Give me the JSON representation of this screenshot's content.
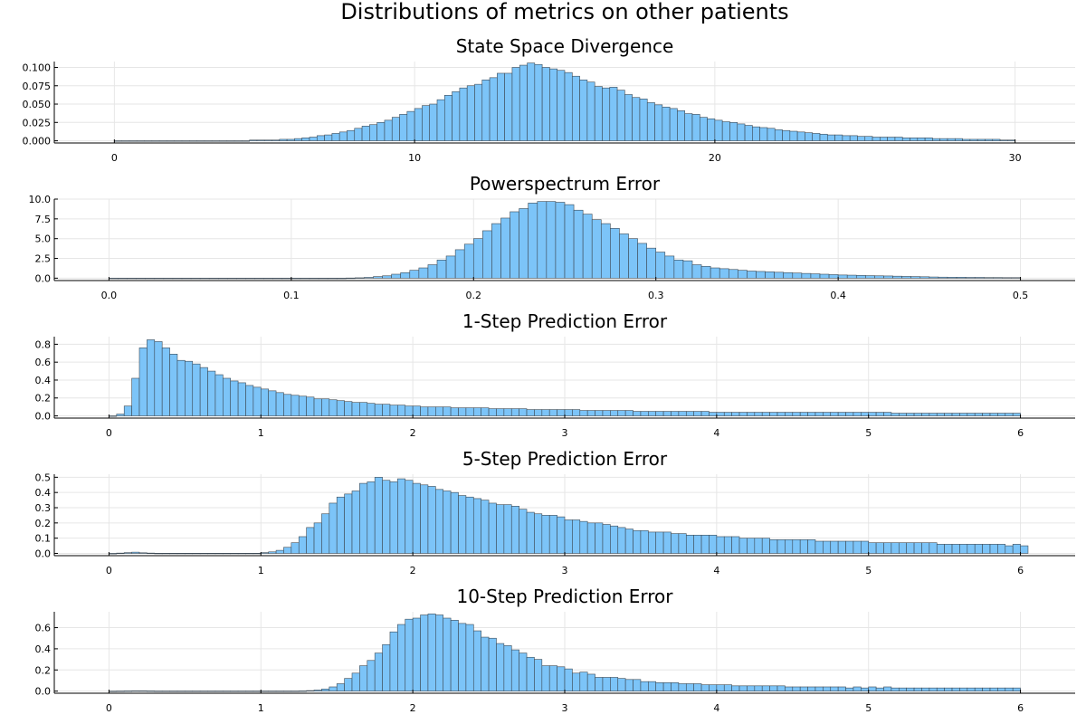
{
  "figure": {
    "title": "Distributions of metrics on other patients",
    "bar_color": "#7cc4f8",
    "edge_color": "#3d4a55"
  },
  "chart_data": [
    {
      "type": "bar",
      "title": "State Space Divergence",
      "xlim": [
        -2,
        32
      ],
      "ylim": [
        -0.003,
        0.108
      ],
      "xticks": [
        0,
        10,
        20,
        30
      ],
      "xtick_labels": [
        "0",
        "10",
        "20",
        "30"
      ],
      "yticks": [
        0,
        0.025,
        0.05,
        0.075,
        0.1
      ],
      "ytick_labels": [
        "0.000",
        "0.025",
        "0.050",
        "0.075",
        "0.100"
      ],
      "x_start": 0,
      "bin_width": 0.25,
      "values": [
        0,
        0,
        0,
        0,
        0,
        0,
        0,
        0,
        0,
        0,
        0,
        0,
        0,
        0,
        0,
        0,
        0,
        0,
        0.001,
        0.001,
        0.001,
        0.001,
        0.002,
        0.002,
        0.003,
        0.004,
        0.005,
        0.007,
        0.008,
        0.01,
        0.012,
        0.014,
        0.017,
        0.02,
        0.022,
        0.025,
        0.028,
        0.032,
        0.036,
        0.04,
        0.044,
        0.048,
        0.05,
        0.056,
        0.062,
        0.067,
        0.072,
        0.075,
        0.077,
        0.083,
        0.086,
        0.092,
        0.092,
        0.1,
        0.103,
        0.106,
        0.104,
        0.1,
        0.098,
        0.096,
        0.093,
        0.088,
        0.083,
        0.08,
        0.074,
        0.072,
        0.073,
        0.069,
        0.063,
        0.059,
        0.057,
        0.052,
        0.049,
        0.046,
        0.044,
        0.041,
        0.037,
        0.036,
        0.032,
        0.03,
        0.028,
        0.026,
        0.025,
        0.023,
        0.021,
        0.019,
        0.018,
        0.017,
        0.015,
        0.014,
        0.013,
        0.012,
        0.011,
        0.01,
        0.009,
        0.008,
        0.008,
        0.007,
        0.007,
        0.006,
        0.006,
        0.005,
        0.005,
        0.005,
        0.005,
        0.004,
        0.004,
        0.004,
        0.004,
        0.003,
        0.003,
        0.003,
        0.003,
        0.002,
        0.002,
        0.002,
        0.002,
        0.002,
        0.001,
        0.001
      ]
    },
    {
      "type": "bar",
      "title": "Powerspectrum Error",
      "xlim": [
        -0.03,
        0.53
      ],
      "ylim": [
        -0.3,
        10.0
      ],
      "xticks": [
        0,
        0.1,
        0.2,
        0.3,
        0.4,
        0.5
      ],
      "xtick_labels": [
        "0.0",
        "0.1",
        "0.2",
        "0.3",
        "0.4",
        "0.5"
      ],
      "yticks": [
        0,
        2.5,
        5,
        7.5,
        10
      ],
      "ytick_labels": [
        "0.0",
        "2.5",
        "5.0",
        "7.5",
        "10.0"
      ],
      "x_start": 0,
      "bin_width": 0.005,
      "values": [
        0,
        0,
        0,
        0,
        0,
        0,
        0,
        0,
        0,
        0,
        0,
        0,
        0,
        0,
        0,
        0,
        0,
        0,
        0,
        0,
        0,
        0,
        0,
        0,
        0,
        0,
        0.02,
        0.05,
        0.1,
        0.2,
        0.3,
        0.5,
        0.7,
        1.0,
        1.3,
        1.7,
        2.3,
        2.8,
        3.6,
        4.3,
        5.0,
        6.0,
        6.9,
        7.6,
        8.4,
        8.8,
        9.5,
        9.7,
        9.7,
        9.6,
        9.3,
        8.6,
        8.1,
        7.4,
        6.9,
        6.3,
        5.6,
        5.0,
        4.4,
        3.8,
        3.3,
        2.8,
        2.3,
        2.2,
        1.7,
        1.5,
        1.3,
        1.2,
        1.1,
        1.0,
        0.9,
        0.85,
        0.8,
        0.75,
        0.7,
        0.65,
        0.6,
        0.55,
        0.5,
        0.45,
        0.4,
        0.38,
        0.35,
        0.32,
        0.3,
        0.28,
        0.25,
        0.22,
        0.2,
        0.18,
        0.15,
        0.13,
        0.12,
        0.12,
        0.1,
        0.1,
        0.08,
        0.08,
        0.07,
        0.07
      ]
    },
    {
      "type": "bar",
      "title": "1-Step Prediction Error",
      "xlim": [
        -0.36,
        6.36
      ],
      "ylim": [
        -0.025,
        0.885
      ],
      "xticks": [
        0,
        1,
        2,
        3,
        4,
        5,
        6
      ],
      "xtick_labels": [
        "0",
        "1",
        "2",
        "3",
        "4",
        "5",
        "6"
      ],
      "yticks": [
        0,
        0.2,
        0.4,
        0.6,
        0.8
      ],
      "ytick_labels": [
        "0.0",
        "0.2",
        "0.4",
        "0.6",
        "0.8"
      ],
      "x_start": 0,
      "bin_width": 0.05,
      "values": [
        0,
        0.02,
        0.11,
        0.42,
        0.76,
        0.85,
        0.83,
        0.76,
        0.69,
        0.62,
        0.61,
        0.58,
        0.54,
        0.5,
        0.46,
        0.42,
        0.39,
        0.37,
        0.34,
        0.32,
        0.3,
        0.28,
        0.26,
        0.24,
        0.23,
        0.22,
        0.21,
        0.19,
        0.19,
        0.18,
        0.17,
        0.16,
        0.15,
        0.15,
        0.14,
        0.13,
        0.13,
        0.12,
        0.12,
        0.11,
        0.11,
        0.1,
        0.1,
        0.1,
        0.1,
        0.09,
        0.09,
        0.09,
        0.09,
        0.09,
        0.08,
        0.08,
        0.08,
        0.08,
        0.08,
        0.07,
        0.07,
        0.07,
        0.07,
        0.07,
        0.07,
        0.07,
        0.06,
        0.06,
        0.06,
        0.06,
        0.06,
        0.06,
        0.06,
        0.05,
        0.05,
        0.05,
        0.05,
        0.05,
        0.05,
        0.05,
        0.05,
        0.05,
        0.05,
        0.04,
        0.04,
        0.04,
        0.04,
        0.04,
        0.04,
        0.04,
        0.04,
        0.04,
        0.04,
        0.04,
        0.04,
        0.04,
        0.04,
        0.04,
        0.04,
        0.04,
        0.04,
        0.04,
        0.04,
        0.04,
        0.04,
        0.04,
        0.04,
        0.03,
        0.03,
        0.03,
        0.03,
        0.03,
        0.03,
        0.03,
        0.03,
        0.03,
        0.03,
        0.03,
        0.03,
        0.03,
        0.03,
        0.03,
        0.03,
        0.03
      ]
    },
    {
      "type": "bar",
      "title": "5-Step Prediction Error",
      "xlim": [
        -0.36,
        6.36
      ],
      "ylim": [
        -0.015,
        0.52
      ],
      "xticks": [
        0,
        1,
        2,
        3,
        4,
        5,
        6
      ],
      "xtick_labels": [
        "0",
        "1",
        "2",
        "3",
        "4",
        "5",
        "6"
      ],
      "yticks": [
        0,
        0.1,
        0.2,
        0.3,
        0.4,
        0.5
      ],
      "ytick_labels": [
        "0.0",
        "0.1",
        "0.2",
        "0.3",
        "0.4",
        "0.5"
      ],
      "x_start": 0,
      "bin_width": 0.05,
      "values": [
        0,
        0.002,
        0.005,
        0.008,
        0.004,
        0.002,
        0.001,
        0.001,
        0.001,
        0.001,
        0.001,
        0.001,
        0.001,
        0.001,
        0.001,
        0.001,
        0.001,
        0.001,
        0.001,
        0.001,
        0.005,
        0.01,
        0.02,
        0.04,
        0.07,
        0.11,
        0.17,
        0.2,
        0.26,
        0.33,
        0.37,
        0.39,
        0.41,
        0.46,
        0.47,
        0.5,
        0.48,
        0.47,
        0.49,
        0.48,
        0.46,
        0.45,
        0.44,
        0.42,
        0.41,
        0.4,
        0.38,
        0.37,
        0.36,
        0.35,
        0.33,
        0.32,
        0.32,
        0.31,
        0.29,
        0.27,
        0.26,
        0.25,
        0.25,
        0.24,
        0.22,
        0.22,
        0.21,
        0.2,
        0.2,
        0.19,
        0.18,
        0.17,
        0.16,
        0.15,
        0.15,
        0.14,
        0.14,
        0.14,
        0.13,
        0.13,
        0.12,
        0.12,
        0.12,
        0.12,
        0.11,
        0.11,
        0.11,
        0.1,
        0.1,
        0.1,
        0.1,
        0.09,
        0.09,
        0.09,
        0.09,
        0.09,
        0.09,
        0.08,
        0.08,
        0.08,
        0.08,
        0.08,
        0.08,
        0.08,
        0.07,
        0.07,
        0.07,
        0.07,
        0.07,
        0.07,
        0.07,
        0.07,
        0.07,
        0.06,
        0.06,
        0.06,
        0.06,
        0.06,
        0.06,
        0.06,
        0.06,
        0.06,
        0.05,
        0.06,
        0.05
      ]
    },
    {
      "type": "bar",
      "title": "10-Step Prediction Error",
      "xlim": [
        -0.36,
        6.36
      ],
      "ylim": [
        -0.02,
        0.75
      ],
      "xticks": [
        0,
        1,
        2,
        3,
        4,
        5,
        6
      ],
      "xtick_labels": [
        "0",
        "1",
        "2",
        "3",
        "4",
        "5",
        "6"
      ],
      "yticks": [
        0,
        0.2,
        0.4,
        0.6
      ],
      "ytick_labels": [
        "0.0",
        "0.2",
        "0.4",
        "0.6"
      ],
      "x_start": 0,
      "bin_width": 0.05,
      "values": [
        0,
        0.001,
        0.002,
        0.003,
        0.003,
        0.002,
        0.001,
        0.001,
        0.001,
        0.001,
        0.001,
        0.001,
        0.001,
        0.001,
        0.001,
        0.001,
        0.001,
        0.001,
        0.001,
        0.001,
        0.001,
        0.001,
        0.001,
        0.001,
        0.001,
        0.002,
        0.005,
        0.01,
        0.02,
        0.04,
        0.07,
        0.12,
        0.17,
        0.24,
        0.29,
        0.36,
        0.44,
        0.56,
        0.63,
        0.68,
        0.69,
        0.72,
        0.73,
        0.72,
        0.69,
        0.67,
        0.64,
        0.63,
        0.57,
        0.51,
        0.5,
        0.45,
        0.43,
        0.39,
        0.36,
        0.32,
        0.3,
        0.24,
        0.24,
        0.23,
        0.21,
        0.17,
        0.18,
        0.16,
        0.13,
        0.13,
        0.13,
        0.12,
        0.11,
        0.11,
        0.09,
        0.09,
        0.08,
        0.08,
        0.08,
        0.07,
        0.07,
        0.07,
        0.06,
        0.06,
        0.06,
        0.06,
        0.05,
        0.05,
        0.05,
        0.05,
        0.05,
        0.05,
        0.05,
        0.04,
        0.04,
        0.04,
        0.04,
        0.04,
        0.04,
        0.04,
        0.04,
        0.03,
        0.04,
        0.03,
        0.04,
        0.03,
        0.04,
        0.03,
        0.03,
        0.03,
        0.03,
        0.03,
        0.03,
        0.03,
        0.03,
        0.03,
        0.03,
        0.03,
        0.03,
        0.03,
        0.03,
        0.03,
        0.03,
        0.03
      ]
    }
  ]
}
